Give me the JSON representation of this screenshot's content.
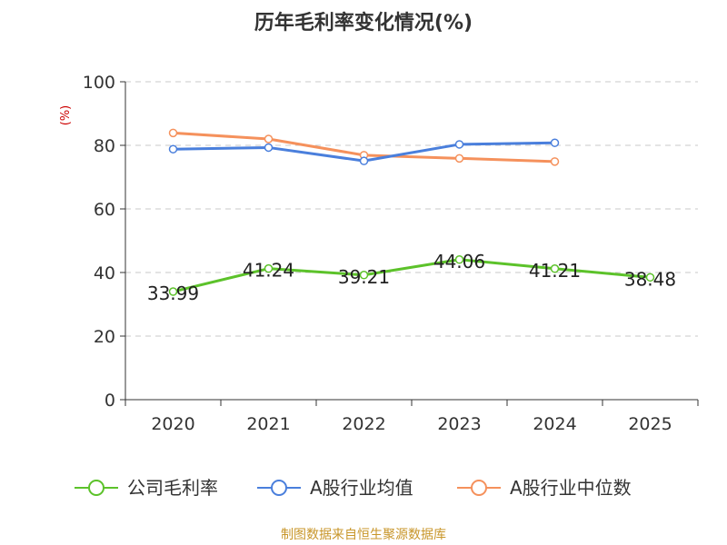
{
  "chart_data": {
    "type": "line",
    "title": "历年毛利率变化情况(%)",
    "ylabel": "(%)",
    "ylim": [
      0,
      100
    ],
    "yticks": [
      0,
      20,
      40,
      60,
      80,
      100
    ],
    "grid": true,
    "legend_position": "bottom",
    "categories": [
      "2020",
      "2021",
      "2022",
      "2023",
      "2024",
      "2025"
    ],
    "series": [
      {
        "name": "公司毛利率",
        "color": "#5cc22a",
        "values": [
          33.99,
          41.24,
          39.21,
          44.06,
          41.21,
          38.48
        ],
        "labels": [
          "33.99",
          "41.24",
          "39.21",
          "44.06",
          "41.21",
          "38.48"
        ]
      },
      {
        "name": "A股行业均值",
        "color": "#4a7fdc",
        "values": [
          78.8,
          79.3,
          75.1,
          80.3,
          80.8,
          null
        ]
      },
      {
        "name": "A股行业中位数",
        "color": "#f5915c",
        "values": [
          83.9,
          82.0,
          76.9,
          75.9,
          74.9,
          null
        ]
      }
    ],
    "source": "制图数据来自恒生聚源数据库"
  }
}
